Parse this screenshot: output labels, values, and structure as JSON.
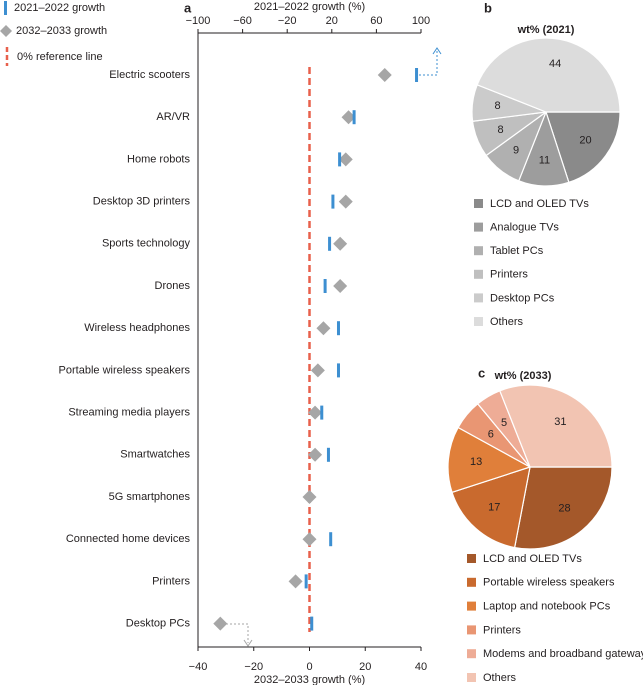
{
  "chart_data": [
    {
      "type": "dot",
      "panel": "a",
      "categories": [
        "Electric scooters",
        "AR/VR",
        "Home robots",
        "Desktop 3D printers",
        "Sports technology",
        "Drones",
        "Wireless headphones",
        "Portable wireless speakers",
        "Streaming media players",
        "Smartwatches",
        "5G smartphones",
        "Connected home devices",
        "Printers",
        "Desktop PCs"
      ],
      "series": [
        {
          "name": "2021–2022 growth",
          "color": "#3d8fd1",
          "axis": "x2",
          "marker": "bar",
          "values": [
            96,
            40,
            27,
            21,
            18,
            14,
            26,
            26,
            11,
            17,
            null,
            19,
            -3,
            2
          ]
        },
        {
          "name": "2032–2033 growth",
          "color": "#a6a6a6",
          "marker": "diamond",
          "values": [
            27,
            14,
            13,
            13,
            11,
            11,
            5,
            3,
            2,
            2,
            0,
            0,
            -5,
            -32
          ]
        }
      ],
      "reference_line": {
        "label": "0% reference line",
        "value": 0,
        "color": "#e8604c"
      },
      "xlabel": "2032–2033 growth (%)",
      "xlim": [
        -40,
        40
      ],
      "xticks": [
        {
          "value": -40,
          "label": "−40"
        },
        {
          "value": -20,
          "label": "−20"
        },
        0,
        20,
        40
      ],
      "x2label": "2021–2022 growth (%)",
      "x2lim": [
        -100,
        100
      ],
      "x2ticks": [
        {
          "value": -100,
          "label": "−100"
        },
        {
          "value": -60,
          "label": "−60"
        },
        {
          "value": -20,
          "label": "−20"
        },
        20,
        60,
        100
      ]
    },
    {
      "type": "pie",
      "panel": "b",
      "title": "wt% (2021)",
      "categories": [
        "LCD and OLED TVs",
        "Analogue TVs",
        "Tablet PCs",
        "Printers",
        "Desktop PCs",
        "Others"
      ],
      "values": [
        20,
        11,
        9,
        8,
        8,
        44
      ],
      "colors": [
        "#8a8a8a",
        "#9d9d9d",
        "#b0b0b0",
        "#bfbfbf",
        "#cbcbcb",
        "#dcdcdc"
      ]
    },
    {
      "type": "pie",
      "panel": "c",
      "title": "wt% (2033)",
      "categories": [
        "LCD and OLED TVs",
        "Portable wireless speakers",
        "Laptop and notebook PCs",
        "Printers",
        "Modems and broadband gateways",
        "Others"
      ],
      "values": [
        28,
        17,
        13,
        6,
        5,
        31
      ],
      "colors": [
        "#a4582a",
        "#c96a2e",
        "#e07f3a",
        "#e99673",
        "#eeac96",
        "#f2c4b2"
      ]
    }
  ]
}
